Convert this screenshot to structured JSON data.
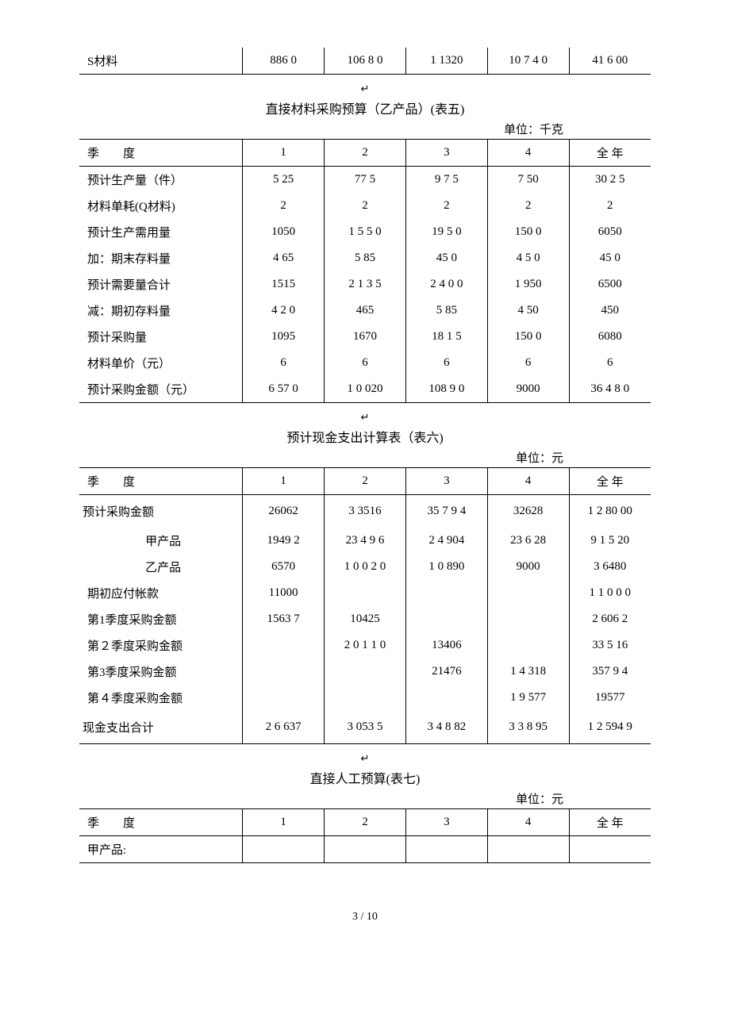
{
  "top_fragment": {
    "label": "S材料",
    "cells": [
      "886 0",
      "106 8  0",
      "1 1320",
      "10 7 4  0",
      "41 6 00"
    ]
  },
  "table5": {
    "title": "直接材料采购预算（乙产品）(表五)",
    "unit": "单位：千克",
    "header_label": "季　　度",
    "headers": [
      "1",
      "2",
      "3",
      "4",
      "全 年"
    ],
    "rows": [
      {
        "label": "预计生产量（件）",
        "cells": [
          "5 25",
          "77 5",
          "9 7 5",
          "7 50",
          "30 2 5"
        ]
      },
      {
        "label": "材料单耗(Q材料)",
        "cells": [
          "2",
          "2",
          "2",
          "2",
          "2"
        ]
      },
      {
        "label": "预计生产需用量",
        "cells": [
          "1050",
          "1 5 5 0",
          "19 5 0",
          "150 0",
          "6050"
        ]
      },
      {
        "label": "加：期末存料量",
        "cells": [
          "4 65",
          "5 85",
          "45 0",
          "4  5 0",
          "45 0"
        ]
      },
      {
        "label": "预计需要量合计",
        "cells": [
          "1515",
          "2 1 3 5",
          "2 4 0 0",
          "1  950",
          "6500"
        ]
      },
      {
        "label": "减：期初存料量",
        "cells": [
          "4  2 0",
          "465",
          "5 85",
          "4 50",
          "450"
        ]
      },
      {
        "label": "预计采购量",
        "cells": [
          "1095",
          "1670",
          "18 1 5",
          "150  0",
          "6080"
        ]
      },
      {
        "label": "材料单价（元）",
        "cells": [
          "6",
          "6",
          "6",
          "6",
          "6"
        ]
      },
      {
        "label": "预计采购金额（元）",
        "cells": [
          "6 57 0",
          "1  0 020",
          "108 9  0",
          "9000",
          "36 4 8  0"
        ]
      }
    ]
  },
  "table6": {
    "title": "预计现金支出计算表（表六)",
    "unit": "单位：元",
    "header_label": "季　　度",
    "headers": [
      "1",
      "2",
      "3",
      "4",
      "全 年"
    ],
    "rows": [
      {
        "label": "预计采购金额",
        "indent": false,
        "tall": true,
        "cells": [
          "26062",
          "3 3516",
          "35 7 9 4",
          "32628",
          "1 2 80 00"
        ]
      },
      {
        "label": "甲产品",
        "indent": true,
        "tall": false,
        "cells": [
          "1949  2",
          "23 4 9 6",
          "2 4 904",
          "23 6 28",
          "9 1 5 20"
        ]
      },
      {
        "label": "乙产品",
        "indent": true,
        "tall": false,
        "cells": [
          "6570",
          "1 0 0 2 0",
          "1 0 890",
          "9000",
          "3 6480"
        ]
      },
      {
        "label": "期初应付帐款",
        "indent": false,
        "tall": false,
        "cells": [
          "11000",
          "",
          "",
          "",
          "1 1 0 0  0"
        ]
      },
      {
        "label": "第1季度采购金额",
        "indent": false,
        "tall": false,
        "cells": [
          "1563 7",
          "10425",
          "",
          "",
          "2 606 2"
        ]
      },
      {
        "label": "第２季度采购金额",
        "indent": false,
        "tall": false,
        "cells": [
          "",
          "2 0 1 1 0",
          "13406",
          "",
          "33 5 16"
        ]
      },
      {
        "label": "第3季度采购金额",
        "indent": false,
        "tall": false,
        "cells": [
          "",
          "",
          "21476",
          "1 4  318",
          "357 9 4"
        ]
      },
      {
        "label": "第４季度采购金额",
        "indent": false,
        "tall": false,
        "cells": [
          "",
          "",
          "",
          "1 9 577",
          "19577"
        ]
      },
      {
        "label": "现金支出合计",
        "indent": false,
        "tall": true,
        "cells": [
          "2 6 637",
          "3 053 5",
          "3 4  8 82",
          "3 3  8 95",
          "1 2 594 9"
        ]
      }
    ]
  },
  "table7": {
    "title": "直接人工预算(表七)",
    "unit": "单位：元",
    "header_label": "季　　度",
    "headers": [
      "1",
      "2",
      "3",
      "4",
      "全 年"
    ],
    "rows": [
      {
        "label": "甲产品:",
        "cells": [
          "",
          "",
          "",
          "",
          ""
        ]
      }
    ]
  },
  "anchor": "↵",
  "pager": "3 / 10"
}
